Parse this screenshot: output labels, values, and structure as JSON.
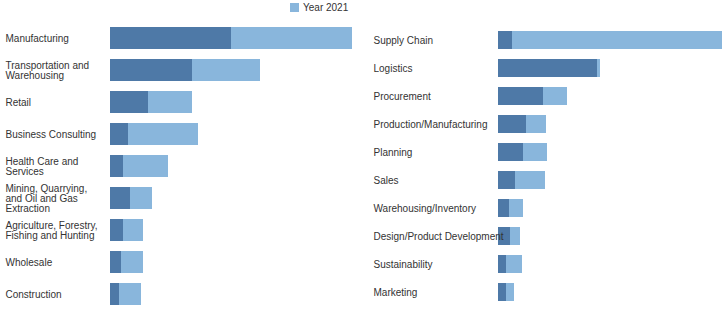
{
  "chart_data": [
    {
      "type": "bar",
      "orientation": "horizontal",
      "stacked": true,
      "tick_labels": "y",
      "legend": "top",
      "categories": [
        "Manufacturing",
        "Transportation and Warehousing",
        "Retail",
        "Business Consulting",
        "Health Care and Services",
        "Mining, Quarrying, and Oil and Gas Extraction",
        "Agriculture, Forestry, Fishing and Hunting",
        "Wholesale",
        "Construction"
      ],
      "series": [
        {
          "name": null,
          "color": "#4e79a7",
          "values": [
            121,
            82,
            38,
            18,
            13,
            20,
            13,
            11,
            9
          ]
        },
        {
          "name": "Year 2021",
          "color": "#89b6dc",
          "values": [
            121,
            68,
            44,
            70,
            45,
            22,
            20,
            22,
            22
          ]
        }
      ]
    },
    {
      "type": "bar",
      "orientation": "horizontal",
      "stacked": true,
      "tick_labels": "y",
      "categories": [
        "Supply Chain",
        "Logistics",
        "Procurement",
        "Production/Manufacturing",
        "Planning",
        "Sales",
        "Warehousing/Inventory",
        "Design/Product Development",
        "Sustainability",
        "Marketing"
      ],
      "series": [
        {
          "name": null,
          "color": "#4e79a7",
          "values": [
            14,
            99,
            45,
            28,
            25,
            17,
            11,
            12,
            8,
            8
          ]
        },
        {
          "name": "Year 2021",
          "color": "#89b6dc",
          "values": [
            210,
            3,
            24,
            20,
            24,
            30,
            14,
            10,
            16,
            8
          ]
        }
      ]
    }
  ]
}
